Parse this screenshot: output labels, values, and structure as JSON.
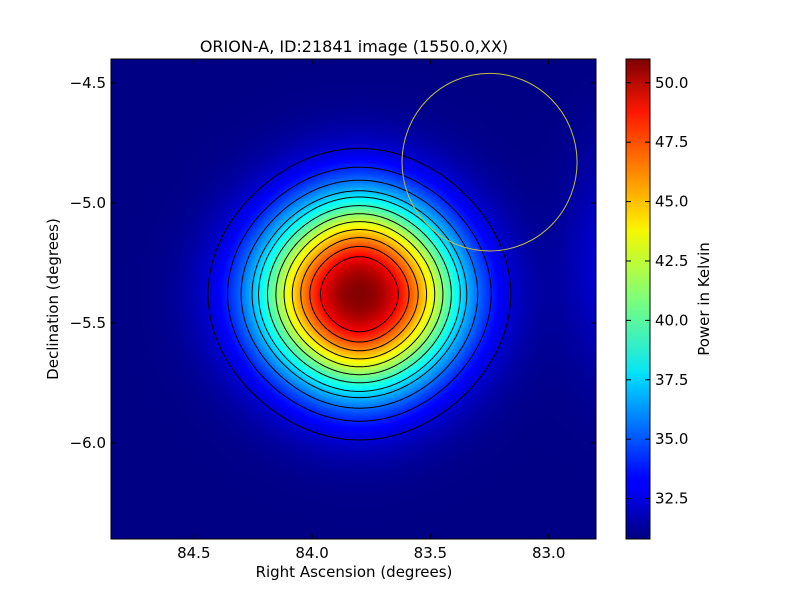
{
  "chart_data": [
    {
      "type": "heatmap",
      "title": "ORION-A, ID:21841 image (1550.0,XX)",
      "xlabel": "Right Ascension (degrees)",
      "ylabel": "Declination (degrees)",
      "xlim": [
        84.85,
        82.8
      ],
      "ylim": [
        -6.4,
        -4.4
      ],
      "x_inverted": true,
      "xticks": [
        84.5,
        84.0,
        83.5,
        83.0
      ],
      "xtick_labels": [
        "84.5",
        "84.0",
        "83.5",
        "83.0"
      ],
      "yticks": [
        -4.5,
        -5.0,
        -5.5,
        -6.0
      ],
      "ytick_labels": [
        "−4.5",
        "−5.0",
        "−5.5",
        "−6.0"
      ],
      "colormap": "jet",
      "value_range": [
        30.8,
        51.0
      ],
      "peak": {
        "ra": 83.8,
        "dec": -5.38,
        "value": 51.0
      },
      "contour_levels": [
        32.5,
        34.0,
        35.5,
        37.0,
        38.0,
        39.5,
        41.0,
        42.5,
        44.0,
        45.5,
        47.0,
        48.5
      ],
      "contour_color": "#000000",
      "beam_circle": {
        "ra": 83.25,
        "dec": -4.83,
        "radius_deg": 0.37,
        "color": "#bfbf3f"
      },
      "grid": false
    },
    {
      "type": "colorbar",
      "label": "Power in Kelvin",
      "range": [
        30.8,
        51.0
      ],
      "ticks": [
        32.5,
        35.0,
        37.5,
        40.0,
        42.5,
        45.0,
        47.5,
        50.0
      ],
      "tick_labels": [
        "32.5",
        "35.0",
        "37.5",
        "40.0",
        "42.5",
        "45.0",
        "47.5",
        "50.0"
      ]
    }
  ]
}
